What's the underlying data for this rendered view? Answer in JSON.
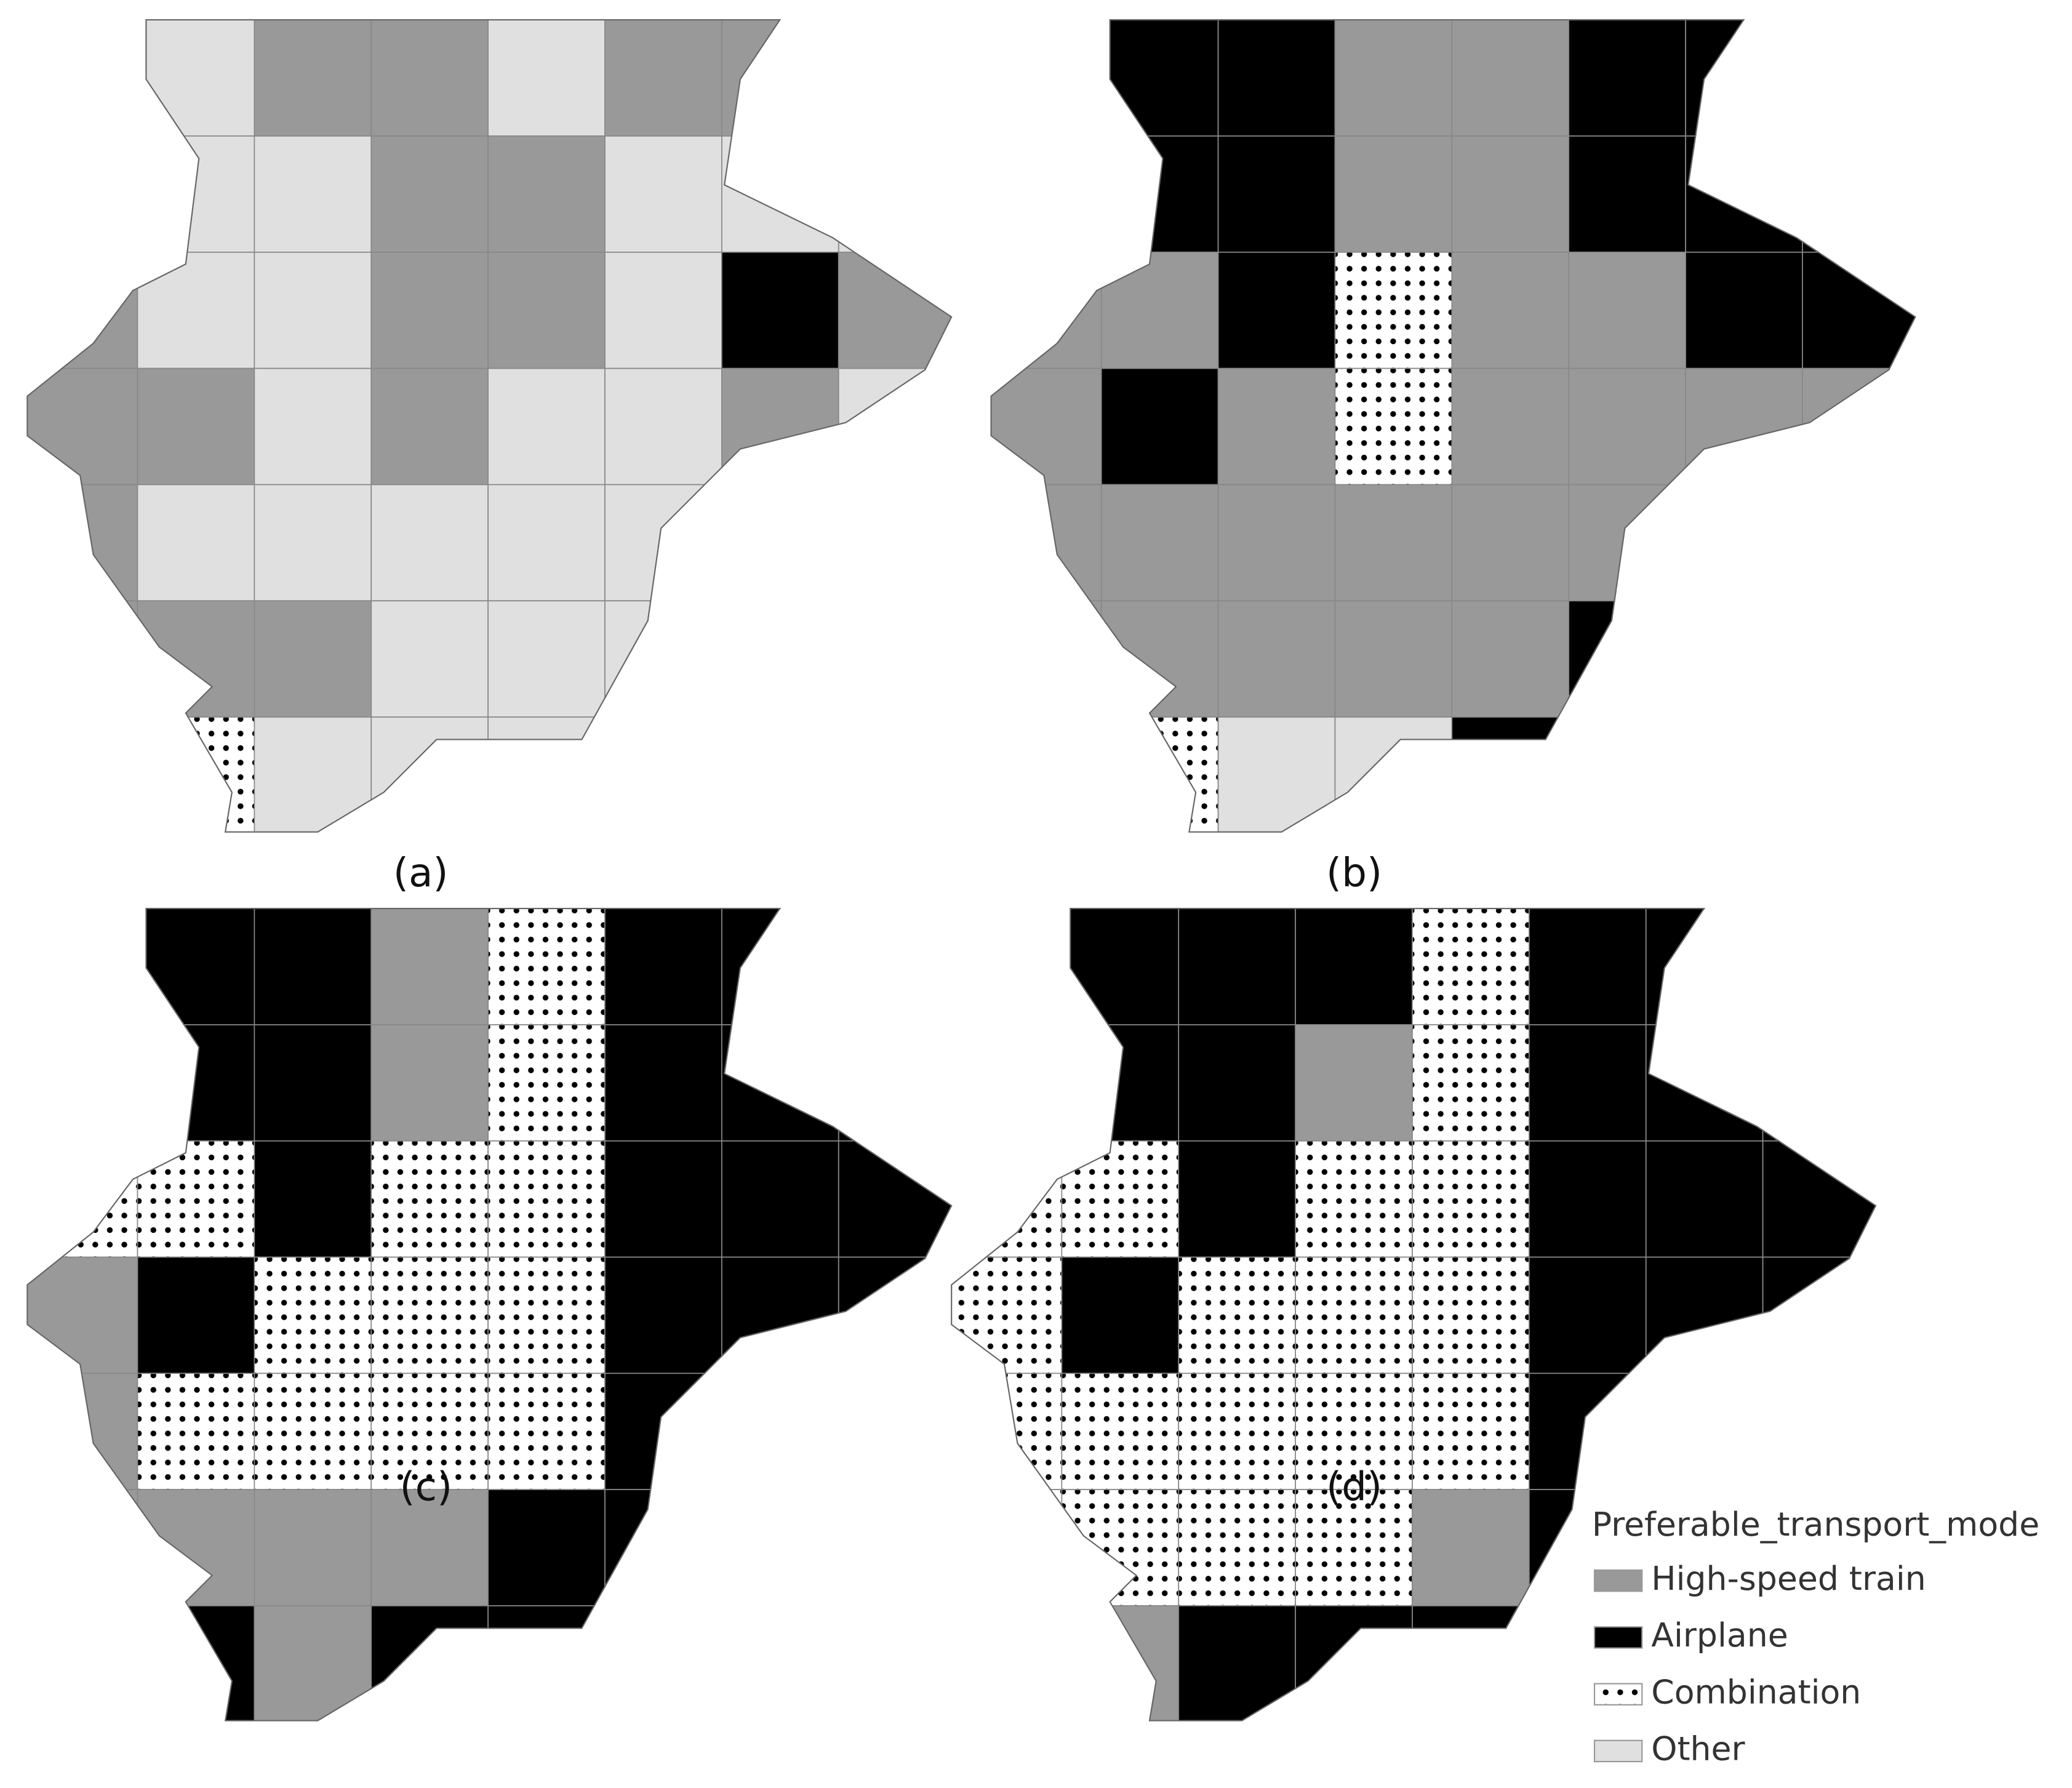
{
  "panels": [
    {
      "caption": "(a)"
    },
    {
      "caption": "(b)"
    },
    {
      "caption": "(c)"
    },
    {
      "caption": "(d)"
    }
  ],
  "legend": {
    "title": "Preferable_transport_mode",
    "items": [
      {
        "label": "High-speed train",
        "color": "#999999"
      },
      {
        "label": "Airplane",
        "color": "#000000"
      },
      {
        "label": "Combination",
        "color": "pattern"
      },
      {
        "label": "Other",
        "color": "#e0e0e0"
      }
    ]
  }
}
